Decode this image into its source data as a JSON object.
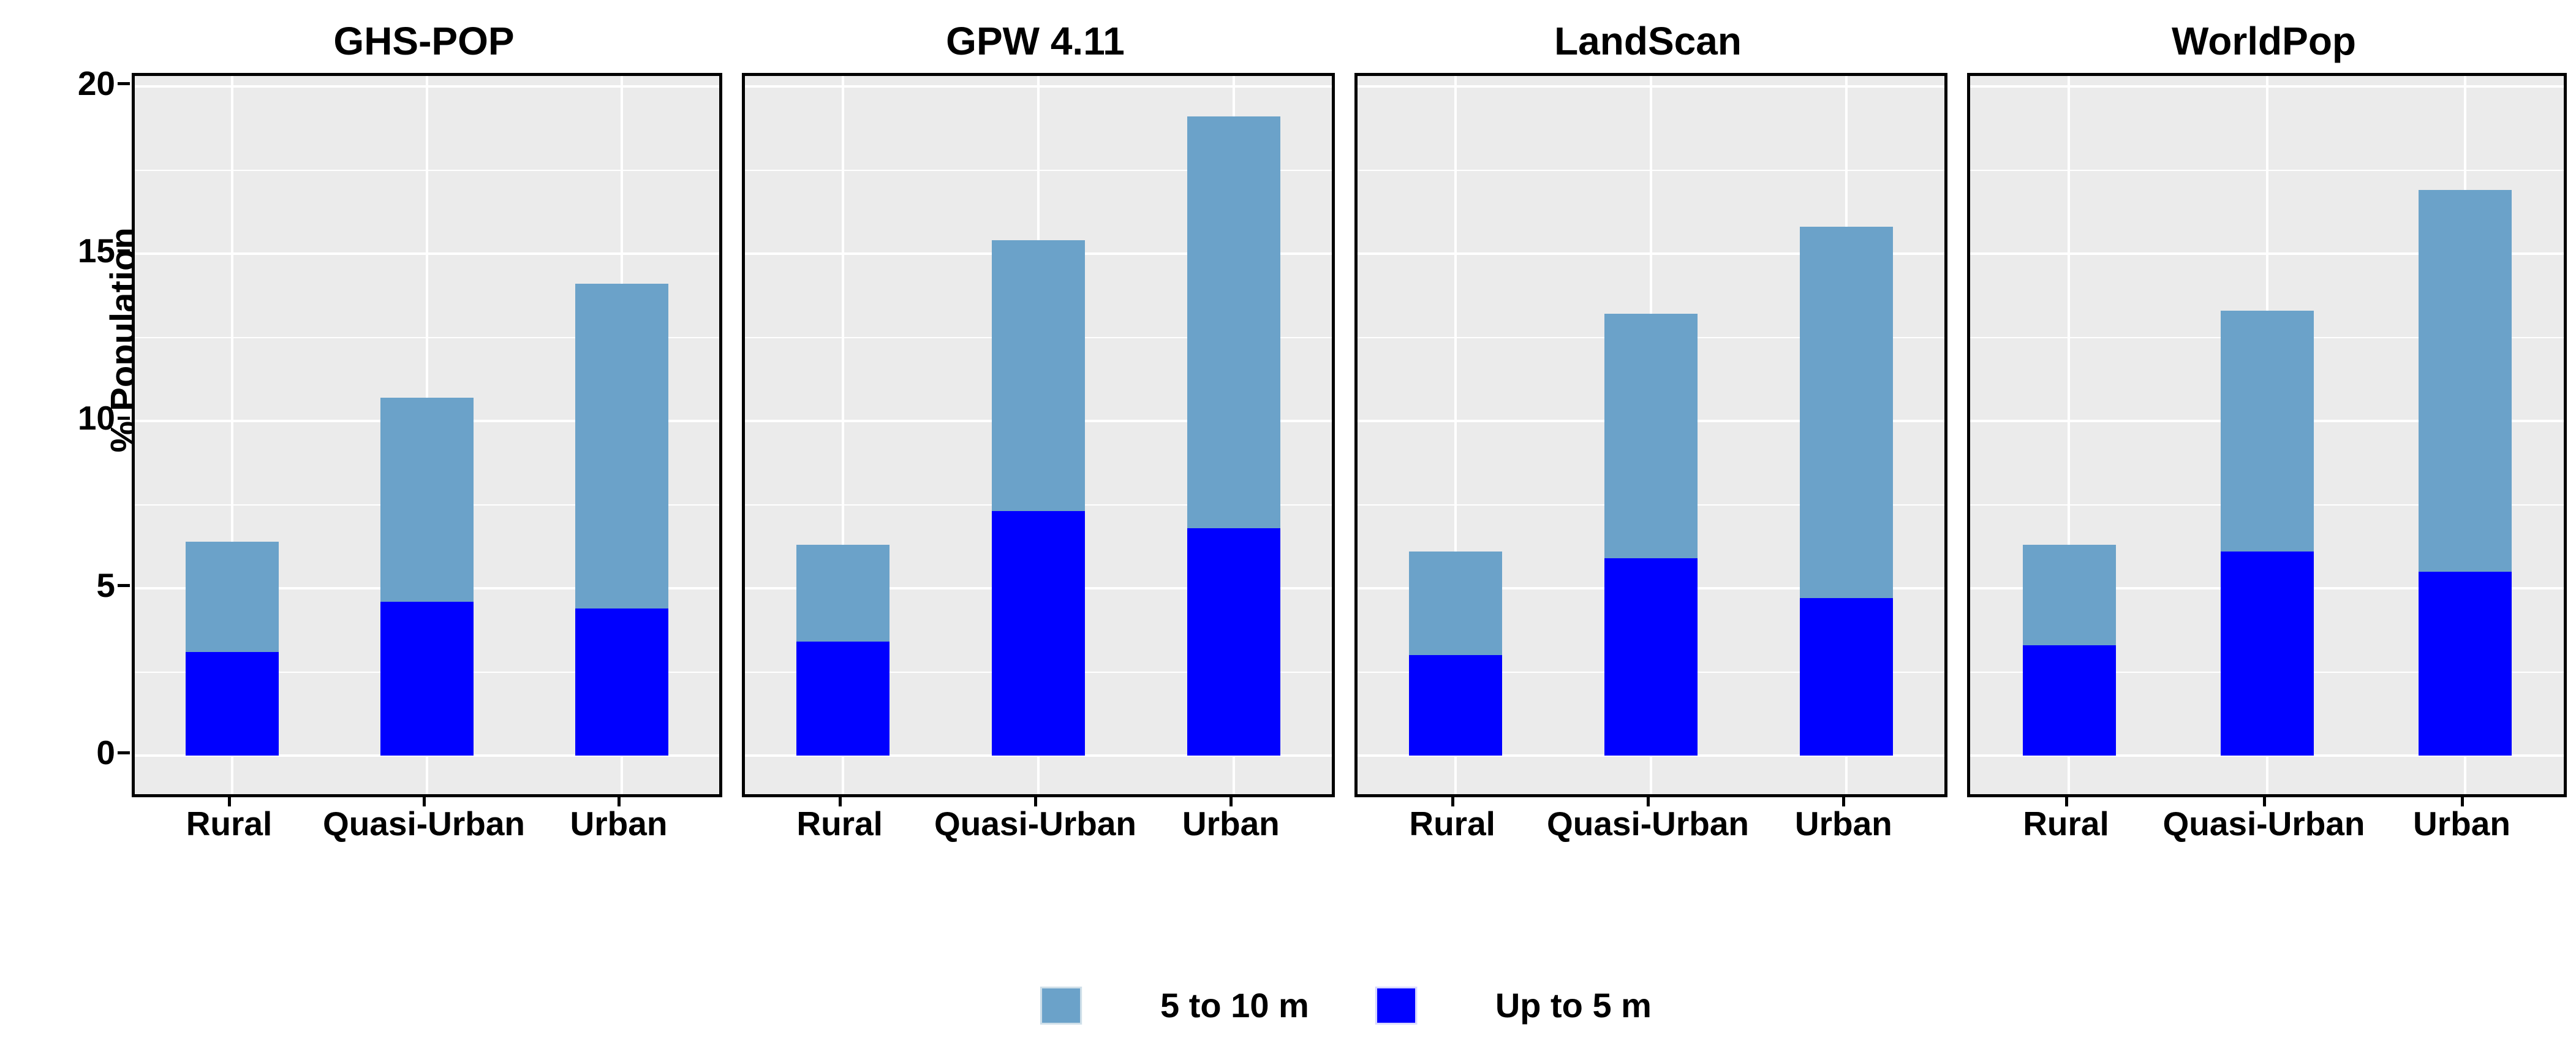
{
  "figure": {
    "ylabel": "% Population",
    "legend": {
      "entries": [
        {
          "label": "5 to 10 m",
          "color": "#6BA2C9"
        },
        {
          "label": "Up to 5 m",
          "color": "#0000FF"
        }
      ]
    }
  },
  "chart_data": {
    "type": "bar",
    "subtype": "stacked-faceted",
    "ylabel": "% Population",
    "ylim": [
      0,
      20
    ],
    "yticks": [
      0,
      5,
      10,
      15,
      20
    ],
    "yticks_minor": [
      2.5,
      7.5,
      12.5,
      17.5
    ],
    "grid": "on",
    "legend_position": "bottom",
    "categories": [
      "Rural",
      "Quasi-Urban",
      "Urban"
    ],
    "series_colors": {
      "5 to 10 m": "#6BA2C9",
      "Up to 5 m": "#0000FF"
    },
    "facets": [
      {
        "title": "GHS-POP",
        "series": [
          {
            "name": "Up to 5 m",
            "values": [
              3.1,
              4.6,
              4.4
            ]
          },
          {
            "name": "5 to 10 m",
            "values": [
              3.3,
              6.1,
              9.7
            ]
          }
        ],
        "totals": [
          6.4,
          10.7,
          14.1
        ]
      },
      {
        "title": "GPW 4.11",
        "series": [
          {
            "name": "Up to 5 m",
            "values": [
              3.4,
              7.3,
              6.8
            ]
          },
          {
            "name": "5 to 10 m",
            "values": [
              2.9,
              8.1,
              12.3
            ]
          }
        ],
        "totals": [
          6.3,
          15.4,
          19.1
        ]
      },
      {
        "title": "LandScan",
        "series": [
          {
            "name": "Up to 5 m",
            "values": [
              3.0,
              5.9,
              4.7
            ]
          },
          {
            "name": "5 to 10 m",
            "values": [
              3.1,
              7.3,
              11.1
            ]
          }
        ],
        "totals": [
          6.1,
          13.2,
          15.8
        ]
      },
      {
        "title": "WorldPop",
        "series": [
          {
            "name": "Up to 5 m",
            "values": [
              3.3,
              6.1,
              5.5
            ]
          },
          {
            "name": "5 to 10 m",
            "values": [
              3.0,
              7.2,
              11.4
            ]
          }
        ],
        "totals": [
          6.3,
          13.3,
          16.9
        ]
      }
    ]
  }
}
